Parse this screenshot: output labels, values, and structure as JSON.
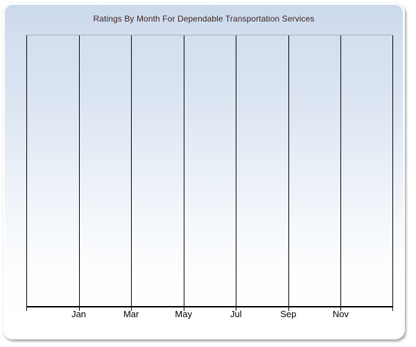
{
  "chart_data": {
    "type": "line",
    "title": "Ratings By Month For Dependable Transportation Services",
    "categories": [
      "Jan",
      "Mar",
      "May",
      "Jul",
      "Sep",
      "Nov"
    ],
    "series": [],
    "xlabel": "",
    "ylabel": "",
    "y_axis_labels": [],
    "x_gridlines": 8,
    "grid": "vertical",
    "legend": "none"
  },
  "colors": {
    "title_text": "#3b2322",
    "label_text": "#000000",
    "gridline": "#000000",
    "axis_line": "#000000",
    "plot_top_border": "#a9aeb8",
    "panel_gradient_top": "#cbd9ec",
    "panel_gradient_bottom": "#ffffff"
  }
}
